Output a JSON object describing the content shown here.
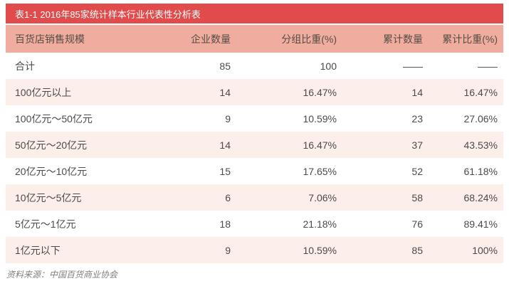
{
  "banner": {
    "title": "表1-1 2016年85家统计样本行业代表性分析表"
  },
  "table": {
    "columns": [
      "百货店销售规模",
      "企业数量",
      "分组比重(%)",
      "累计数量",
      "累计比重(%)"
    ],
    "rows": [
      [
        "合计",
        "85",
        "100",
        "——",
        "——"
      ],
      [
        "100亿元以上",
        "14",
        "16.47%",
        "14",
        "16.47%"
      ],
      [
        "100亿元～50亿元",
        "9",
        "10.59%",
        "23",
        "27.06%"
      ],
      [
        "50亿元～20亿元",
        "14",
        "16.47%",
        "37",
        "43.53%"
      ],
      [
        "20亿元～10亿元",
        "15",
        "17.65%",
        "52",
        "61.18%"
      ],
      [
        "10亿元～5亿元",
        "6",
        "7.06%",
        "58",
        "68.24%"
      ],
      [
        "5亿元～1亿元",
        "18",
        "21.18%",
        "76",
        "89.41%"
      ],
      [
        "1亿元以下",
        "9",
        "10.59%",
        "85",
        "100%"
      ]
    ]
  },
  "footer": {
    "source": "资料来源：中国百货商业协会"
  },
  "colors": {
    "banner_bg": "#e24b4b",
    "banner_text": "#ffffff",
    "header_bg": "#f0ad9f",
    "header_text": "#564c44",
    "row_alt_bg": "#fcefe9",
    "body_text": "#4b4b4b",
    "footer_text": "#808080"
  }
}
